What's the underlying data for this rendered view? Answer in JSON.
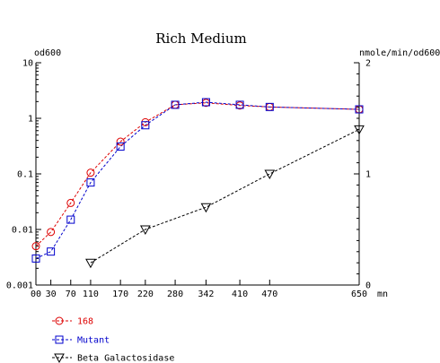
{
  "chart_data": {
    "type": "line",
    "title": "Rich Medium",
    "y_left_label": "od600",
    "y_right_label": "nmole/min/od600",
    "x_unit_label": "mn",
    "x_ticks": [
      0,
      30,
      70,
      110,
      170,
      220,
      280,
      342,
      410,
      470,
      650
    ],
    "x_tick_labels": [
      "00",
      "30",
      "70",
      "110",
      "170",
      "220",
      "280",
      "342",
      "410",
      "470",
      "650"
    ],
    "y_left_scale": "log",
    "y_left_range": [
      0.001,
      10
    ],
    "y_left_tick_labels": [
      "0.001",
      "0.01",
      "0.1",
      "1",
      "10"
    ],
    "y_right_scale": "linear",
    "y_right_range": [
      0,
      2
    ],
    "y_right_tick_labels": [
      "0",
      "1",
      "2"
    ],
    "legend_position": "bottom-left",
    "series": [
      {
        "name": "168",
        "axis": "left",
        "color": "#dd0000",
        "marker": "circle",
        "x": [
          0,
          30,
          70,
          110,
          170,
          220,
          280,
          342,
          410,
          470,
          650
        ],
        "y": [
          0.005,
          0.009,
          0.03,
          0.105,
          0.38,
          0.85,
          1.75,
          1.9,
          1.7,
          1.6,
          1.45
        ]
      },
      {
        "name": "Mutant",
        "axis": "left",
        "color": "#0000cc",
        "marker": "square",
        "x": [
          0,
          30,
          70,
          110,
          170,
          220,
          280,
          342,
          410,
          470,
          650
        ],
        "y": [
          0.003,
          0.004,
          0.015,
          0.07,
          0.31,
          0.75,
          1.75,
          1.95,
          1.75,
          1.6,
          1.45
        ]
      },
      {
        "name": "Beta Galactosidase",
        "axis": "right",
        "color": "#000000",
        "marker": "triangle-down",
        "x": [
          110,
          220,
          342,
          470,
          650
        ],
        "y": [
          0.2,
          0.5,
          0.7,
          1.0,
          1.4
        ]
      }
    ]
  }
}
